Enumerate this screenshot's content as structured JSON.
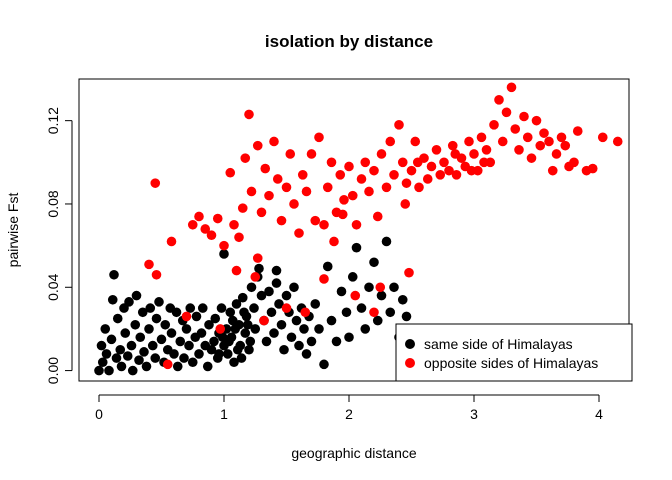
{
  "chart_data": {
    "type": "scatter",
    "title": "isolation by distance",
    "xlabel": "geographic distance",
    "ylabel": "pairwise Fst",
    "xlim": [
      -0.16,
      4.24
    ],
    "ylim": [
      -0.005,
      0.14
    ],
    "x_ticks": [
      0,
      1,
      2,
      3,
      4
    ],
    "x_tick_labels": [
      "0",
      "1",
      "2",
      "3",
      "4"
    ],
    "y_ticks": [
      0.0,
      0.04,
      0.08,
      0.12
    ],
    "y_tick_labels": [
      "0.00",
      "0.04",
      "0.08",
      "0.12"
    ],
    "grid": false,
    "legend_position": "bottom-right",
    "series": [
      {
        "name": "same side of Himalayas",
        "color": "#000000",
        "points": [
          [
            0.0,
            0.0
          ],
          [
            0.02,
            0.012
          ],
          [
            0.03,
            0.004
          ],
          [
            0.05,
            0.02
          ],
          [
            0.06,
            0.008
          ],
          [
            0.08,
            0.0
          ],
          [
            0.1,
            0.015
          ],
          [
            0.11,
            0.034
          ],
          [
            0.12,
            0.046
          ],
          [
            0.14,
            0.006
          ],
          [
            0.15,
            0.025
          ],
          [
            0.17,
            0.01
          ],
          [
            0.18,
            0.002
          ],
          [
            0.2,
            0.03
          ],
          [
            0.21,
            0.018
          ],
          [
            0.23,
            0.007
          ],
          [
            0.24,
            0.033
          ],
          [
            0.26,
            0.012
          ],
          [
            0.27,
            0.0
          ],
          [
            0.29,
            0.022
          ],
          [
            0.3,
            0.036
          ],
          [
            0.32,
            0.005
          ],
          [
            0.33,
            0.016
          ],
          [
            0.35,
            0.028
          ],
          [
            0.36,
            0.009
          ],
          [
            0.38,
            0.002
          ],
          [
            0.4,
            0.02
          ],
          [
            0.41,
            0.03
          ],
          [
            0.43,
            0.012
          ],
          [
            0.45,
            0.006
          ],
          [
            0.46,
            0.025
          ],
          [
            0.48,
            0.033
          ],
          [
            0.5,
            0.015
          ],
          [
            0.52,
            0.004
          ],
          [
            0.53,
            0.022
          ],
          [
            0.55,
            0.01
          ],
          [
            0.57,
            0.03
          ],
          [
            0.58,
            0.018
          ],
          [
            0.6,
            0.008
          ],
          [
            0.62,
            0.028
          ],
          [
            0.63,
            0.002
          ],
          [
            0.65,
            0.014
          ],
          [
            0.67,
            0.024
          ],
          [
            0.68,
            0.006
          ],
          [
            0.7,
            0.02
          ],
          [
            0.72,
            0.012
          ],
          [
            0.73,
            0.03
          ],
          [
            0.75,
            0.004
          ],
          [
            0.77,
            0.016
          ],
          [
            0.78,
            0.026
          ],
          [
            0.8,
            0.008
          ],
          [
            0.82,
            0.018
          ],
          [
            0.83,
            0.03
          ],
          [
            0.85,
            0.012
          ],
          [
            0.87,
            0.002
          ],
          [
            0.88,
            0.022
          ],
          [
            0.9,
            0.01
          ],
          [
            0.92,
            0.014
          ],
          [
            0.93,
            0.025
          ],
          [
            0.95,
            0.006
          ],
          [
            0.96,
            0.018
          ],
          [
            0.98,
            0.03
          ],
          [
            1.0,
            0.012
          ],
          [
            1.02,
            0.02
          ],
          [
            1.03,
            0.008
          ],
          [
            1.05,
            0.028
          ],
          [
            1.06,
            0.016
          ],
          [
            1.08,
            0.004
          ],
          [
            1.1,
            0.032
          ],
          [
            1.12,
            0.022
          ],
          [
            1.13,
            0.012
          ],
          [
            1.15,
            0.035
          ],
          [
            1.17,
            0.018
          ],
          [
            1.18,
            0.026
          ],
          [
            1.2,
            0.01
          ],
          [
            1.22,
            0.04
          ],
          [
            1.24,
            0.03
          ],
          [
            1.25,
            0.02
          ],
          [
            1.27,
            0.045
          ],
          [
            1.3,
            0.036
          ],
          [
            1.32,
            0.024
          ],
          [
            1.34,
            0.014
          ],
          [
            1.36,
            0.038
          ],
          [
            1.38,
            0.028
          ],
          [
            1.4,
            0.018
          ],
          [
            1.42,
            0.042
          ],
          [
            1.44,
            0.032
          ],
          [
            1.46,
            0.022
          ],
          [
            1.48,
            0.01
          ],
          [
            1.5,
            0.036
          ],
          [
            1.52,
            0.028
          ],
          [
            1.54,
            0.016
          ],
          [
            1.56,
            0.04
          ],
          [
            1.58,
            0.024
          ],
          [
            1.6,
            0.012
          ],
          [
            1.62,
            0.03
          ],
          [
            1.64,
            0.02
          ],
          [
            1.66,
            0.008
          ],
          [
            1.68,
            0.026
          ],
          [
            1.7,
            0.014
          ],
          [
            1.73,
            0.032
          ],
          [
            1.76,
            0.02
          ],
          [
            1.8,
            0.003
          ],
          [
            1.83,
            0.05
          ],
          [
            1.86,
            0.024
          ],
          [
            1.9,
            0.014
          ],
          [
            1.94,
            0.038
          ],
          [
            1.98,
            0.028
          ],
          [
            2.0,
            0.016
          ],
          [
            2.03,
            0.045
          ],
          [
            2.06,
            0.059
          ],
          [
            2.1,
            0.03
          ],
          [
            2.13,
            0.02
          ],
          [
            2.16,
            0.04
          ],
          [
            2.2,
            0.052
          ],
          [
            2.23,
            0.024
          ],
          [
            2.26,
            0.036
          ],
          [
            2.3,
            0.062
          ],
          [
            2.33,
            0.028
          ],
          [
            2.36,
            0.04
          ],
          [
            2.4,
            0.016
          ],
          [
            2.43,
            0.034
          ],
          [
            2.46,
            0.026
          ],
          [
            1.0,
            0.056
          ],
          [
            1.28,
            0.049
          ],
          [
            1.42,
            0.048
          ],
          [
            0.96,
            0.008
          ],
          [
            1.04,
            0.014
          ],
          [
            1.09,
            0.02
          ],
          [
            1.14,
            0.006
          ],
          [
            1.07,
            0.024
          ],
          [
            0.99,
            0.016
          ],
          [
            1.11,
            0.01
          ],
          [
            1.16,
            0.028
          ],
          [
            1.21,
            0.014
          ],
          [
            1.19,
            0.022
          ]
        ]
      },
      {
        "name": "opposite sides of Himalayas",
        "color": "#ff0000",
        "points": [
          [
            0.4,
            0.051
          ],
          [
            0.45,
            0.09
          ],
          [
            0.46,
            0.046
          ],
          [
            0.58,
            0.062
          ],
          [
            0.7,
            0.026
          ],
          [
            0.75,
            0.07
          ],
          [
            0.8,
            0.074
          ],
          [
            0.85,
            0.068
          ],
          [
            0.9,
            0.065
          ],
          [
            0.95,
            0.073
          ],
          [
            1.0,
            0.06
          ],
          [
            1.05,
            0.095
          ],
          [
            1.08,
            0.07
          ],
          [
            1.1,
            0.048
          ],
          [
            1.12,
            0.064
          ],
          [
            1.15,
            0.078
          ],
          [
            1.17,
            0.102
          ],
          [
            1.2,
            0.123
          ],
          [
            1.22,
            0.086
          ],
          [
            1.25,
            0.045
          ],
          [
            1.27,
            0.108
          ],
          [
            1.3,
            0.076
          ],
          [
            1.33,
            0.097
          ],
          [
            1.36,
            0.084
          ],
          [
            1.4,
            0.11
          ],
          [
            1.43,
            0.092
          ],
          [
            1.46,
            0.072
          ],
          [
            1.5,
            0.088
          ],
          [
            1.53,
            0.104
          ],
          [
            1.56,
            0.08
          ],
          [
            1.6,
            0.066
          ],
          [
            1.63,
            0.094
          ],
          [
            1.66,
            0.086
          ],
          [
            1.7,
            0.104
          ],
          [
            1.73,
            0.072
          ],
          [
            1.76,
            0.112
          ],
          [
            1.8,
            0.07
          ],
          [
            1.83,
            0.088
          ],
          [
            1.86,
            0.1
          ],
          [
            1.9,
            0.076
          ],
          [
            1.93,
            0.094
          ],
          [
            1.96,
            0.082
          ],
          [
            2.0,
            0.098
          ],
          [
            2.03,
            0.084
          ],
          [
            2.06,
            0.07
          ],
          [
            2.1,
            0.092
          ],
          [
            2.13,
            0.1
          ],
          [
            2.16,
            0.086
          ],
          [
            2.2,
            0.096
          ],
          [
            2.23,
            0.074
          ],
          [
            2.26,
            0.104
          ],
          [
            2.3,
            0.088
          ],
          [
            2.33,
            0.11
          ],
          [
            2.36,
            0.094
          ],
          [
            2.4,
            0.118
          ],
          [
            2.43,
            0.1
          ],
          [
            2.46,
            0.09
          ],
          [
            2.5,
            0.096
          ],
          [
            2.53,
            0.11
          ],
          [
            2.56,
            0.088
          ],
          [
            2.6,
            0.102
          ],
          [
            2.63,
            0.092
          ],
          [
            2.66,
            0.098
          ],
          [
            2.7,
            0.106
          ],
          [
            2.73,
            0.094
          ],
          [
            2.76,
            0.1
          ],
          [
            2.8,
            0.096
          ],
          [
            2.83,
            0.108
          ],
          [
            2.86,
            0.094
          ],
          [
            2.9,
            0.102
          ],
          [
            2.93,
            0.098
          ],
          [
            2.96,
            0.11
          ],
          [
            3.0,
            0.104
          ],
          [
            3.03,
            0.096
          ],
          [
            3.06,
            0.112
          ],
          [
            3.1,
            0.106
          ],
          [
            3.13,
            0.1
          ],
          [
            3.16,
            0.118
          ],
          [
            3.2,
            0.13
          ],
          [
            3.23,
            0.11
          ],
          [
            3.26,
            0.124
          ],
          [
            3.3,
            0.136
          ],
          [
            3.33,
            0.116
          ],
          [
            3.36,
            0.106
          ],
          [
            3.4,
            0.122
          ],
          [
            3.43,
            0.112
          ],
          [
            3.46,
            0.102
          ],
          [
            3.5,
            0.12
          ],
          [
            3.53,
            0.108
          ],
          [
            3.56,
            0.114
          ],
          [
            3.6,
            0.11
          ],
          [
            3.63,
            0.096
          ],
          [
            3.66,
            0.104
          ],
          [
            3.7,
            0.112
          ],
          [
            3.73,
            0.108
          ],
          [
            3.76,
            0.098
          ],
          [
            3.8,
            0.1
          ],
          [
            3.83,
            0.115
          ],
          [
            3.9,
            0.096
          ],
          [
            3.95,
            0.097
          ],
          [
            4.03,
            0.112
          ],
          [
            4.15,
            0.11
          ],
          [
            0.55,
            0.003
          ],
          [
            0.97,
            0.02
          ],
          [
            1.32,
            0.024
          ],
          [
            1.5,
            0.03
          ],
          [
            1.65,
            0.028
          ],
          [
            2.05,
            0.036
          ],
          [
            2.25,
            0.04
          ],
          [
            2.48,
            0.047
          ],
          [
            2.2,
            0.028
          ],
          [
            1.8,
            0.044
          ],
          [
            1.27,
            0.054
          ],
          [
            1.88,
            0.062
          ],
          [
            1.95,
            0.075
          ],
          [
            2.55,
            0.1
          ],
          [
            2.85,
            0.104
          ],
          [
            2.98,
            0.096
          ],
          [
            3.08,
            0.1
          ],
          [
            2.45,
            0.08
          ]
        ]
      }
    ]
  }
}
